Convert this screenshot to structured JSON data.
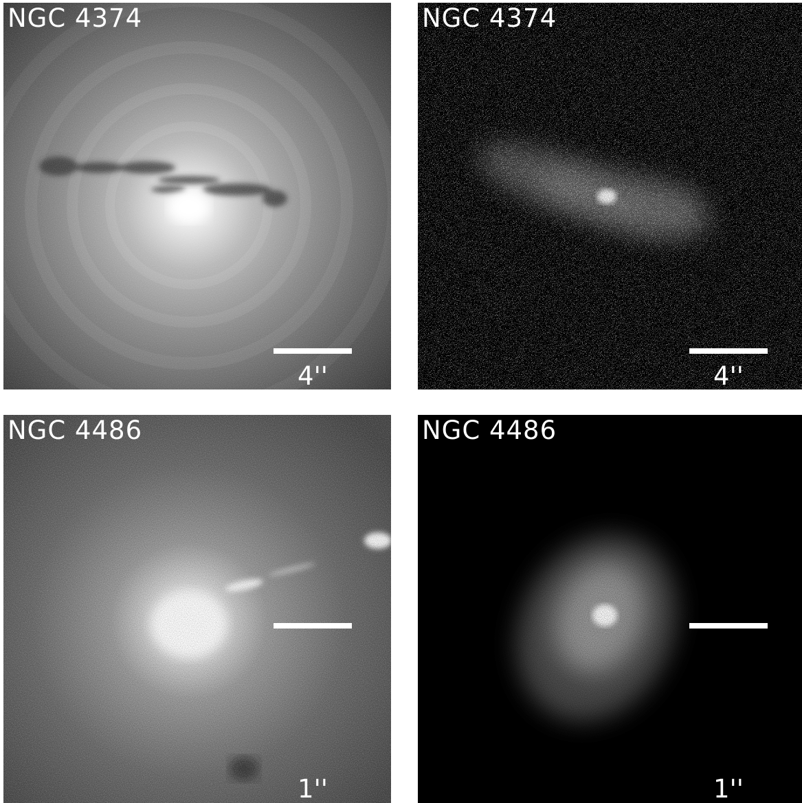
{
  "panels": [
    {
      "label": "NGC 4374",
      "scale": "4''"
    },
    {
      "label": "NGC 4374",
      "scale": "4''"
    },
    {
      "label": "NGC 4486",
      "scale": "1''"
    },
    {
      "label": "NGC 4486",
      "scale": "1''"
    }
  ]
}
